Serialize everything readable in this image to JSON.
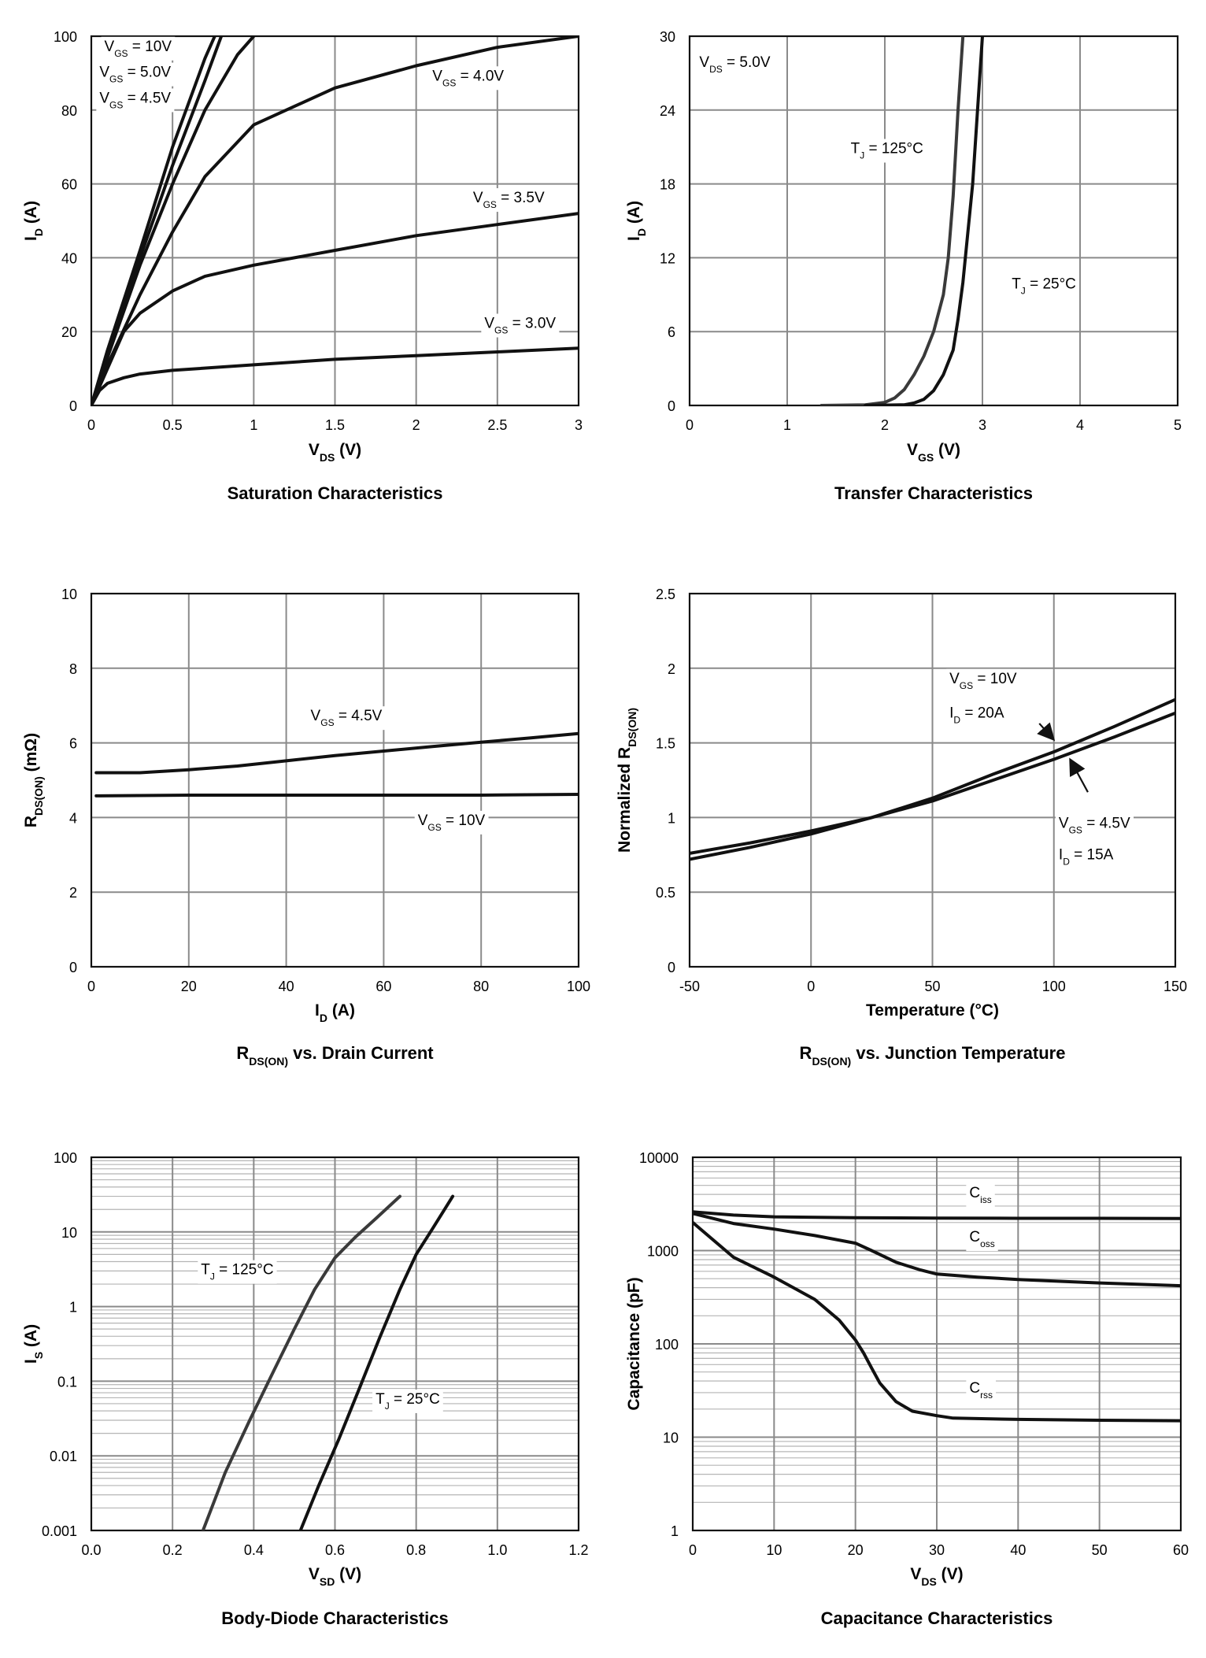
{
  "chart_data": [
    {
      "type": "line",
      "title": "Saturation Characteristics",
      "xlabel": "V_DS (V)",
      "ylabel": "I_D (A)",
      "xlim": [
        0,
        3
      ],
      "ylim": [
        0,
        100
      ],
      "xticks": [
        0,
        0.5,
        1,
        1.5,
        2,
        2.5,
        3
      ],
      "xtick_labels": [
        "0",
        "0.5",
        "1",
        "1.5",
        "2",
        "2.5",
        "3"
      ],
      "yticks": [
        0,
        20,
        40,
        60,
        80,
        100
      ],
      "ytick_labels": [
        "0",
        "20",
        "40",
        "60",
        "80",
        "100"
      ],
      "grid": true,
      "series": [
        {
          "name": "V_GS = 10V",
          "x": [
            0,
            0.1,
            0.3,
            0.5,
            0.7,
            0.76
          ],
          "y": [
            0,
            15,
            42,
            70,
            94,
            100
          ]
        },
        {
          "name": "V_GS = 5.0V",
          "x": [
            0,
            0.1,
            0.3,
            0.5,
            0.7,
            0.8
          ],
          "y": [
            0,
            14,
            40,
            65,
            88,
            100
          ]
        },
        {
          "name": "V_GS = 4.5V",
          "x": [
            0,
            0.1,
            0.3,
            0.5,
            0.7,
            0.9,
            1.0
          ],
          "y": [
            0,
            13,
            38,
            60,
            80,
            95,
            100
          ]
        },
        {
          "name": "V_GS = 4.0V",
          "x": [
            0,
            0.1,
            0.3,
            0.5,
            0.7,
            1.0,
            1.5,
            2.0,
            2.5,
            3.0
          ],
          "y": [
            0,
            11,
            30,
            47,
            62,
            76,
            86,
            92,
            97,
            100
          ]
        },
        {
          "name": "V_GS = 3.5V",
          "x": [
            0,
            0.1,
            0.2,
            0.3,
            0.5,
            0.7,
            1.0,
            1.5,
            2.0,
            2.5,
            3.0
          ],
          "y": [
            0,
            10,
            20,
            25,
            31,
            35,
            38,
            42,
            46,
            49,
            52
          ]
        },
        {
          "name": "V_GS = 3.0V",
          "x": [
            0,
            0.05,
            0.1,
            0.2,
            0.3,
            0.5,
            1.0,
            1.5,
            2.0,
            2.5,
            3.0
          ],
          "y": [
            0,
            4,
            6,
            7.5,
            8.5,
            9.5,
            11,
            12.5,
            13.5,
            14.5,
            15.5
          ]
        }
      ],
      "annotations": [
        {
          "text": "V_GS = 10V",
          "x": 0.08,
          "y": 96
        },
        {
          "text": "V_GS = 5.0V",
          "x": 0.05,
          "y": 89
        },
        {
          "text": "V_GS = 4.5V",
          "x": 0.05,
          "y": 82
        },
        {
          "text": "V_GS = 4.0V",
          "x": 2.1,
          "y": 88
        },
        {
          "text": "V_GS = 3.5V",
          "x": 2.35,
          "y": 55
        },
        {
          "text": "V_GS = 3.0V",
          "x": 2.42,
          "y": 21
        }
      ]
    },
    {
      "type": "line",
      "title": "Transfer Characteristics",
      "xlabel": "V_GS (V)",
      "ylabel": "I_D (A)",
      "xlim": [
        0,
        5
      ],
      "ylim": [
        0,
        30
      ],
      "xticks": [
        0,
        1,
        2,
        3,
        4,
        5
      ],
      "xtick_labels": [
        "0",
        "1",
        "2",
        "3",
        "4",
        "5"
      ],
      "yticks": [
        0,
        6,
        12,
        18,
        24,
        30
      ],
      "ytick_labels": [
        "0",
        "6",
        "12",
        "18",
        "24",
        "30"
      ],
      "grid": true,
      "series": [
        {
          "name": "T_J = 125°C",
          "x": [
            1.35,
            1.8,
            2.0,
            2.1,
            2.2,
            2.3,
            2.4,
            2.5,
            2.6,
            2.65,
            2.7,
            2.75,
            2.8
          ],
          "y": [
            0,
            0.05,
            0.25,
            0.6,
            1.3,
            2.5,
            4.0,
            6.0,
            9.0,
            12,
            17,
            24,
            30
          ]
        },
        {
          "name": "T_J = 25°C",
          "x": [
            1.8,
            2.2,
            2.3,
            2.4,
            2.5,
            2.6,
            2.7,
            2.75,
            2.8,
            2.85,
            2.9,
            2.95,
            3.0
          ],
          "y": [
            0,
            0.05,
            0.2,
            0.5,
            1.2,
            2.5,
            4.5,
            7.0,
            10,
            14,
            18,
            24,
            30
          ]
        }
      ],
      "annotations": [
        {
          "text": "V_DS = 5.0V",
          "x": 0.1,
          "y": 27.5
        },
        {
          "text": "T_J = 125°C",
          "x": 1.65,
          "y": 20.5
        },
        {
          "text": "T_J = 25°C",
          "x": 3.3,
          "y": 9.5
        }
      ]
    },
    {
      "type": "line",
      "title": "R_DS(ON) vs. Drain Current",
      "xlabel": "I_D (A)",
      "ylabel": "R_DS(ON) (mΩ)",
      "xlim": [
        0,
        100
      ],
      "ylim": [
        0,
        10
      ],
      "xticks": [
        0,
        20,
        40,
        60,
        80,
        100
      ],
      "xtick_labels": [
        "0",
        "20",
        "40",
        "60",
        "80",
        "100"
      ],
      "yticks": [
        0,
        2,
        4,
        6,
        8,
        10
      ],
      "ytick_labels": [
        "0",
        "2",
        "4",
        "6",
        "8",
        "10"
      ],
      "grid": true,
      "series": [
        {
          "name": "V_GS = 4.5V",
          "x": [
            1,
            10,
            20,
            30,
            40,
            50,
            60,
            70,
            80,
            90,
            100
          ],
          "y": [
            5.2,
            5.2,
            5.28,
            5.38,
            5.52,
            5.66,
            5.78,
            5.9,
            6.02,
            6.13,
            6.25
          ]
        },
        {
          "name": "V_GS = 10V",
          "x": [
            1,
            20,
            40,
            60,
            80,
            100
          ],
          "y": [
            4.58,
            4.6,
            4.6,
            4.6,
            4.6,
            4.62
          ]
        }
      ],
      "annotations": [
        {
          "text": "V_GS = 4.5V",
          "x": 45,
          "y": 6.6
        },
        {
          "text": "V_GS = 10V",
          "x": 67,
          "y": 3.8
        }
      ]
    },
    {
      "type": "line",
      "title": "R_DS(ON) vs. Junction Temperature",
      "xlabel": "Temperature (°C)",
      "ylabel": "Normalized R_DS(ON)",
      "xlim": [
        -50,
        150
      ],
      "ylim": [
        0,
        2.5
      ],
      "xticks": [
        -50,
        0,
        50,
        100,
        150
      ],
      "xtick_labels": [
        "-50",
        "0",
        "50",
        "100",
        "150"
      ],
      "yticks": [
        0,
        0.5,
        1,
        1.5,
        2,
        2.5
      ],
      "ytick_labels": [
        "0",
        "0.5",
        "1",
        "1.5",
        "2",
        "2.5"
      ],
      "grid": true,
      "series": [
        {
          "name": "V_GS = 10V, I_D = 20A",
          "x": [
            -50,
            -25,
            0,
            25,
            50,
            75,
            100,
            125,
            150
          ],
          "y": [
            0.72,
            0.8,
            0.89,
            1.0,
            1.13,
            1.29,
            1.44,
            1.61,
            1.79
          ]
        },
        {
          "name": "V_GS = 4.5V, I_D = 15A",
          "x": [
            -50,
            -25,
            0,
            25,
            50,
            75,
            100,
            125,
            150
          ],
          "y": [
            0.76,
            0.83,
            0.91,
            1.0,
            1.11,
            1.25,
            1.39,
            1.54,
            1.7
          ]
        }
      ],
      "annotations": [
        {
          "text": "V_GS = 10V",
          "x": 57,
          "y": 1.9
        },
        {
          "text": "I_D = 20A",
          "x": 57,
          "y": 1.67
        },
        {
          "text": "V_GS = 4.5V",
          "x": 102,
          "y": 0.93
        },
        {
          "text": "I_D = 15A",
          "x": 102,
          "y": 0.72
        }
      ]
    },
    {
      "type": "line",
      "title": "Body-Diode Characteristics",
      "xlabel": "V_SD (V)",
      "ylabel": "I_S (A)",
      "xscale": "linear",
      "yscale": "log",
      "xlim": [
        0,
        1.2
      ],
      "ylim": [
        0.001,
        100
      ],
      "xticks": [
        0,
        0.2,
        0.4,
        0.6,
        0.8,
        1.0,
        1.2
      ],
      "xtick_labels": [
        "0.0",
        "0.2",
        "0.4",
        "0.6",
        "0.8",
        "1.0",
        "1.2"
      ],
      "yticks": [
        0.001,
        0.01,
        0.1,
        1,
        10,
        100
      ],
      "ytick_labels": [
        "0.001",
        "0.01",
        "0.1",
        "1",
        "10",
        "100"
      ],
      "grid": true,
      "series": [
        {
          "name": "T_J = 125°C",
          "x": [
            0.275,
            0.33,
            0.39,
            0.45,
            0.5,
            0.55,
            0.6,
            0.65,
            0.7,
            0.76
          ],
          "y": [
            0.001,
            0.006,
            0.03,
            0.14,
            0.5,
            1.7,
            4.5,
            8.5,
            15,
            30
          ]
        },
        {
          "name": "T_J = 25°C",
          "x": [
            0.515,
            0.56,
            0.61,
            0.66,
            0.71,
            0.76,
            0.8,
            0.84,
            0.89
          ],
          "y": [
            0.001,
            0.004,
            0.017,
            0.08,
            0.38,
            1.7,
            5,
            11,
            30
          ]
        }
      ],
      "annotations": [
        {
          "text": "T_J = 125°C",
          "x": 0.27,
          "y": 2.7
        },
        {
          "text": "T_J = 25°C",
          "x": 0.7,
          "y": 0.05
        }
      ]
    },
    {
      "type": "line",
      "title": "Capacitance Characteristics",
      "xlabel": "V_DS (V)",
      "ylabel": "Capacitance (pF)",
      "xscale": "linear",
      "yscale": "log",
      "xlim": [
        0,
        60
      ],
      "ylim": [
        1,
        10000
      ],
      "xticks": [
        0,
        10,
        20,
        30,
        40,
        50,
        60
      ],
      "xtick_labels": [
        "0",
        "10",
        "20",
        "30",
        "40",
        "50",
        "60"
      ],
      "yticks": [
        1,
        10,
        100,
        1000,
        10000
      ],
      "ytick_labels": [
        "1",
        "10",
        "100",
        "1000",
        "10000"
      ],
      "grid": true,
      "series": [
        {
          "name": "C_iss",
          "x": [
            0,
            5,
            10,
            20,
            30,
            40,
            50,
            60
          ],
          "y": [
            2600,
            2400,
            2300,
            2250,
            2230,
            2220,
            2220,
            2210
          ]
        },
        {
          "name": "C_oss",
          "x": [
            0,
            5,
            10,
            15,
            20,
            22,
            25,
            28,
            30,
            35,
            40,
            50,
            60
          ],
          "y": [
            2500,
            1950,
            1700,
            1450,
            1200,
            1000,
            750,
            620,
            560,
            520,
            490,
            450,
            420
          ]
        },
        {
          "name": "C_rss",
          "x": [
            0,
            5,
            10,
            15,
            18,
            20,
            21,
            22,
            23,
            25,
            27,
            30,
            32,
            40,
            50,
            60
          ],
          "y": [
            2000,
            850,
            520,
            300,
            180,
            110,
            80,
            55,
            38,
            24,
            19,
            17,
            16,
            15.5,
            15.2,
            15
          ]
        }
      ],
      "annotations": [
        {
          "text": "C_iss",
          "x": 34,
          "y": 3700
        },
        {
          "text": "C_oss",
          "x": 34,
          "y": 1250
        },
        {
          "text": "C_rss",
          "x": 34,
          "y": 30
        }
      ]
    }
  ]
}
